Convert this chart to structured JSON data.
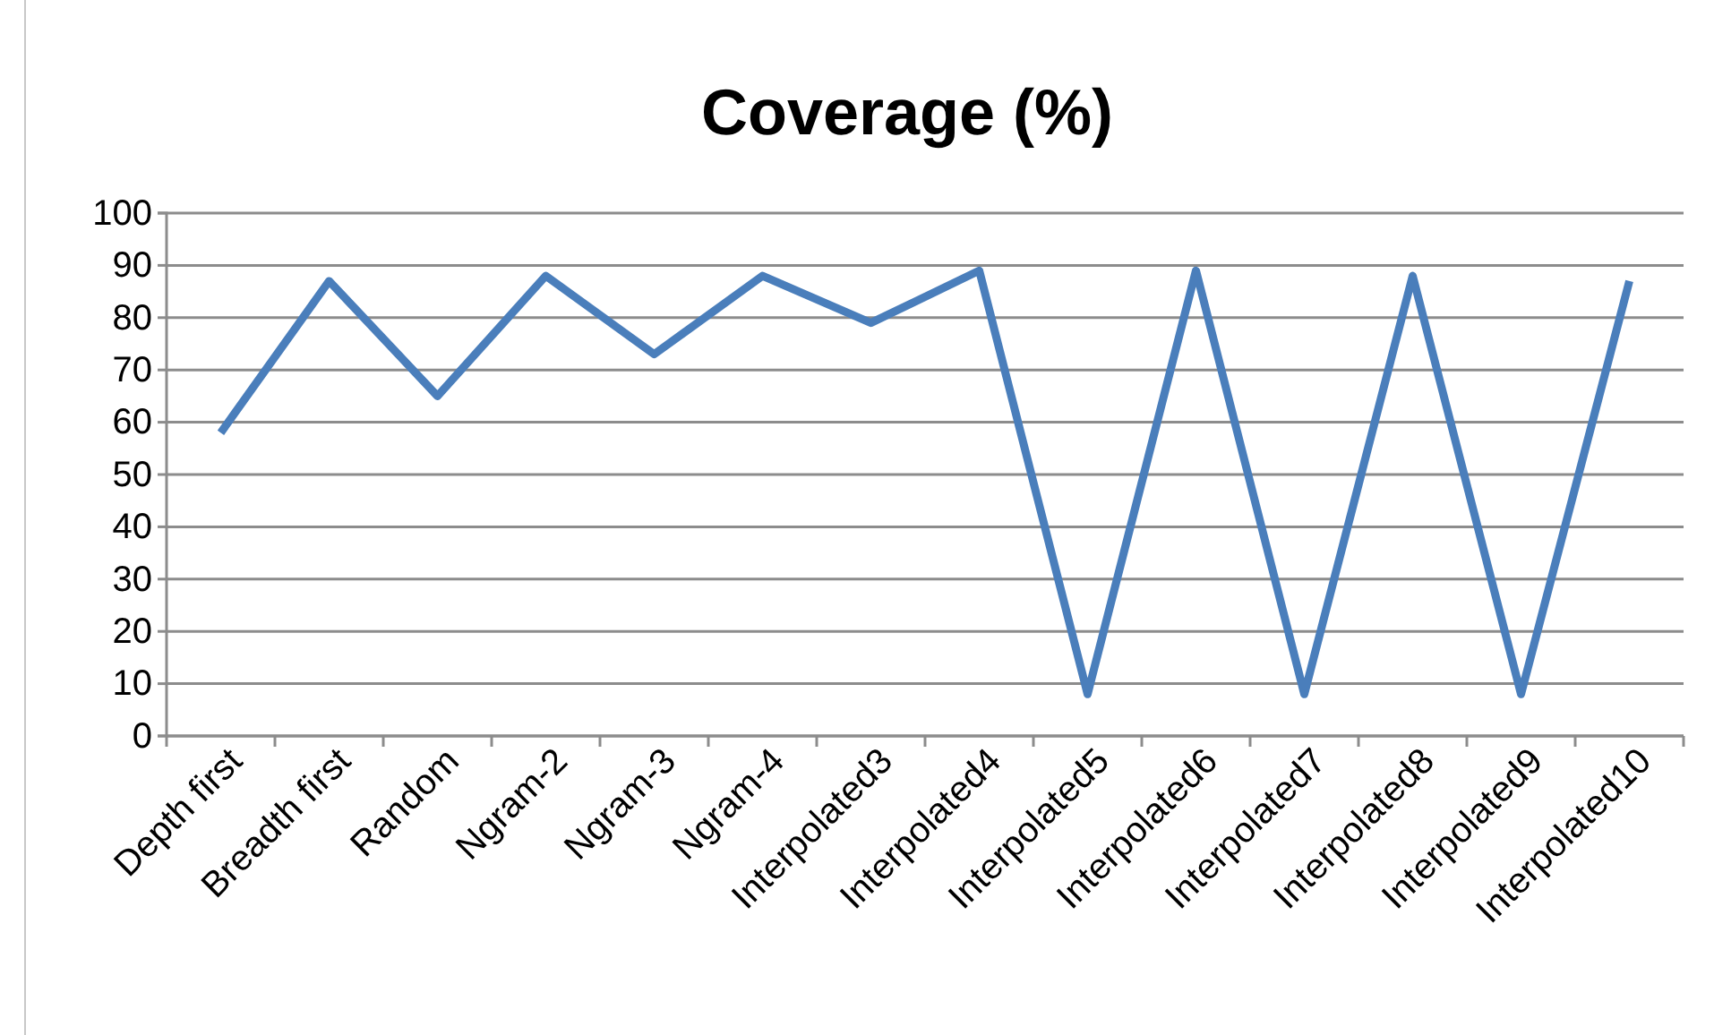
{
  "chart_data": {
    "type": "line",
    "title": "Coverage (%)",
    "categories": [
      "Depth first",
      "Breadth first",
      "Random",
      "Ngram-2",
      "Ngram-3",
      "Ngram-4",
      "Interpolated3",
      "Interpolated4",
      "Interpolated5",
      "Interpolated6",
      "Interpolated7",
      "Interpolated8",
      "Interpolated9",
      "Interpolated10"
    ],
    "series": [
      {
        "color": "#4a7ebb",
        "values": [
          58,
          87,
          65,
          88,
          73,
          88,
          79,
          89,
          8,
          89,
          8,
          88,
          8,
          87
        ]
      }
    ],
    "ylim": [
      0,
      100
    ],
    "yticks": [
      0,
      10,
      20,
      30,
      40,
      50,
      60,
      70,
      80,
      90,
      100
    ],
    "grid": "y",
    "marker": "none",
    "line_style": "solid"
  }
}
